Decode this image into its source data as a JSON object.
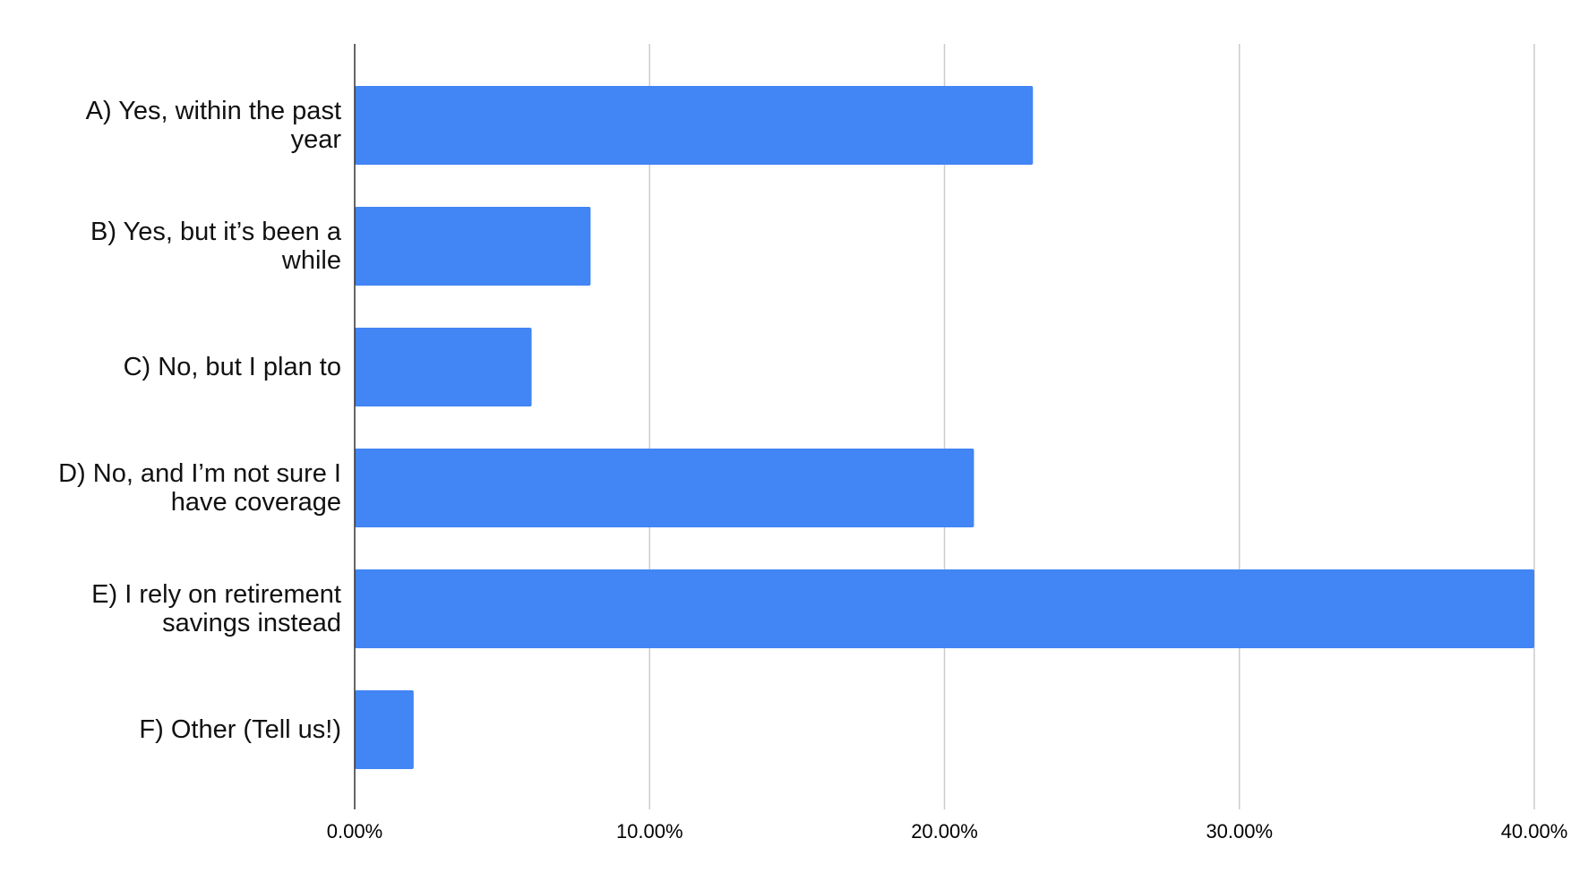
{
  "chart_data": {
    "type": "bar",
    "orientation": "horizontal",
    "categories": [
      "A) Yes, within the past year",
      "B) Yes, but it’s been a while",
      "C) No, but I plan to",
      "D) No, and I’m not sure I have coverage",
      "E) I rely on retirement savings instead",
      "F) Other (Tell us!)"
    ],
    "values": [
      23,
      8,
      6,
      21,
      40,
      2
    ],
    "color": "#4285f4",
    "xlim": [
      0,
      40
    ],
    "xticks": [
      {
        "value": 0,
        "label": "0.00%"
      },
      {
        "value": 10,
        "label": "10.00%"
      },
      {
        "value": 20,
        "label": "20.00%"
      },
      {
        "value": 30,
        "label": "30.00%"
      },
      {
        "value": 40,
        "label": "40.00%"
      }
    ],
    "grid": true
  }
}
